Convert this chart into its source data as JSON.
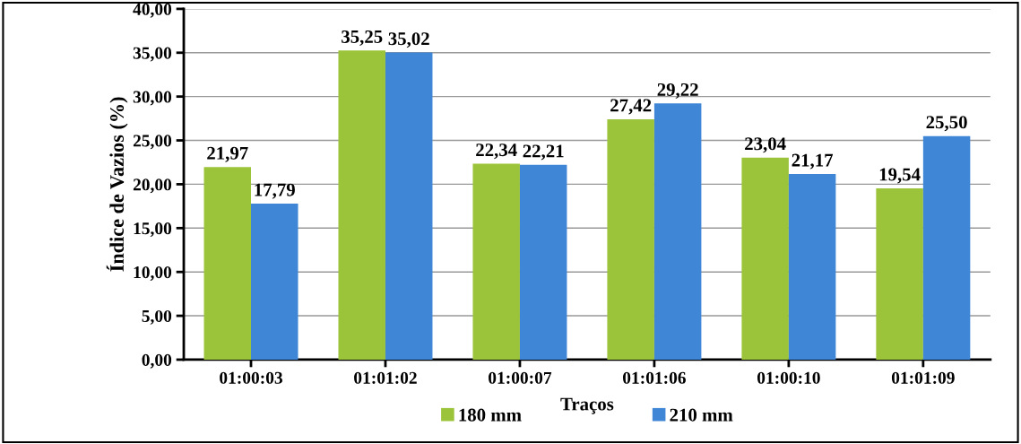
{
  "chart_data": {
    "type": "bar",
    "xlabel": "Traços",
    "ylabel": "Índice de Vazios (%)",
    "categories": [
      "01:00:03",
      "01:01:02",
      "01:00:07",
      "01:01:06",
      "01:00:10",
      "01:01:09"
    ],
    "series": [
      {
        "name": "180 mm",
        "color": "#9bc43a",
        "values": [
          21.97,
          35.25,
          22.34,
          27.42,
          23.04,
          19.54
        ],
        "value_labels": [
          "21,97",
          "35,25",
          "22,34",
          "27,42",
          "23,04",
          "19,54"
        ]
      },
      {
        "name": "210 mm",
        "color": "#3f86d6",
        "values": [
          17.79,
          35.02,
          22.21,
          29.22,
          21.17,
          25.5
        ],
        "value_labels": [
          "17,79",
          "35,02",
          "22,21",
          "29,22",
          "21,17",
          "25,50"
        ]
      }
    ],
    "ylim": [
      0,
      40
    ],
    "yticks": [
      {
        "value": 0,
        "label": "0,00"
      },
      {
        "value": 5,
        "label": "5,00"
      },
      {
        "value": 10,
        "label": "10,00"
      },
      {
        "value": 15,
        "label": "15,00"
      },
      {
        "value": 20,
        "label": "20,00"
      },
      {
        "value": 25,
        "label": "25,00"
      },
      {
        "value": 30,
        "label": "30,00"
      },
      {
        "value": 35,
        "label": "35,00"
      },
      {
        "value": 40,
        "label": "40,00"
      }
    ],
    "grid": "y",
    "legend": "bottom"
  }
}
